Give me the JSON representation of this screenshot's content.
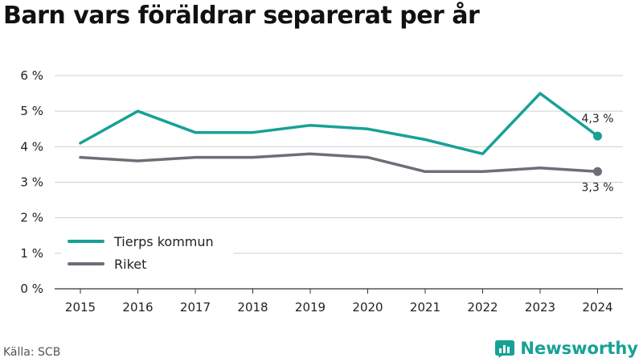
{
  "title": "Barn vars föräldrar separerat per år",
  "source": "Källa: SCB",
  "brand": "Newsworthy",
  "logo_icon": "newsworthy-bar-chart-logo",
  "chart_data": {
    "type": "line",
    "title": "Barn vars föräldrar separerat per år",
    "x": [
      "2015",
      "2016",
      "2017",
      "2018",
      "2019",
      "2020",
      "2021",
      "2022",
      "2023",
      "2024"
    ],
    "y_ticks": [
      "0 %",
      "1 %",
      "2 %",
      "3 %",
      "4 %",
      "5 %",
      "6 %"
    ],
    "ylim": [
      0,
      6
    ],
    "grid": true,
    "legend_position": "bottom-left",
    "series": [
      {
        "name": "Tierps kommun",
        "color": "#17a196",
        "values": [
          4.1,
          5.0,
          4.4,
          4.4,
          4.6,
          4.5,
          4.2,
          3.8,
          5.5,
          4.3
        ],
        "end_label": "4,3 %"
      },
      {
        "name": "Riket",
        "color": "#6e6e78",
        "values": [
          3.7,
          3.6,
          3.7,
          3.7,
          3.8,
          3.7,
          3.3,
          3.3,
          3.4,
          3.3
        ],
        "end_label": "3,3 %"
      }
    ]
  }
}
